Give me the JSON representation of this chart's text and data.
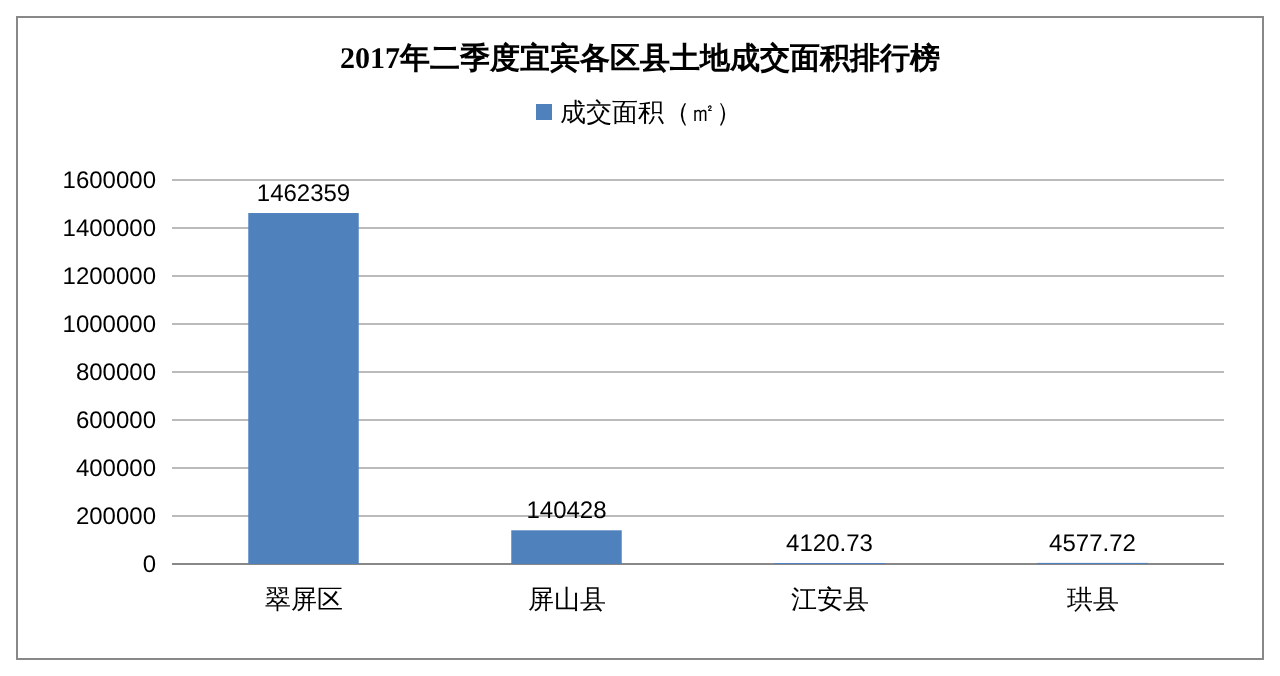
{
  "chart_data": {
    "type": "bar",
    "title": "2017年二季度宜宾各区县土地成交面积排行榜",
    "categories": [
      "翠屏区",
      "屏山县",
      "江安县",
      "珙县"
    ],
    "series": [
      {
        "name": "成交面积（㎡）",
        "color": "#4f81bd",
        "values": [
          1462359,
          140428,
          4120.73,
          4577.72
        ]
      }
    ],
    "ylim": [
      0,
      1600000
    ],
    "yticks": [
      0,
      200000,
      400000,
      600000,
      800000,
      1000000,
      1200000,
      1400000,
      1600000
    ],
    "grid": "y",
    "legend": "top",
    "data_labels": true
  }
}
